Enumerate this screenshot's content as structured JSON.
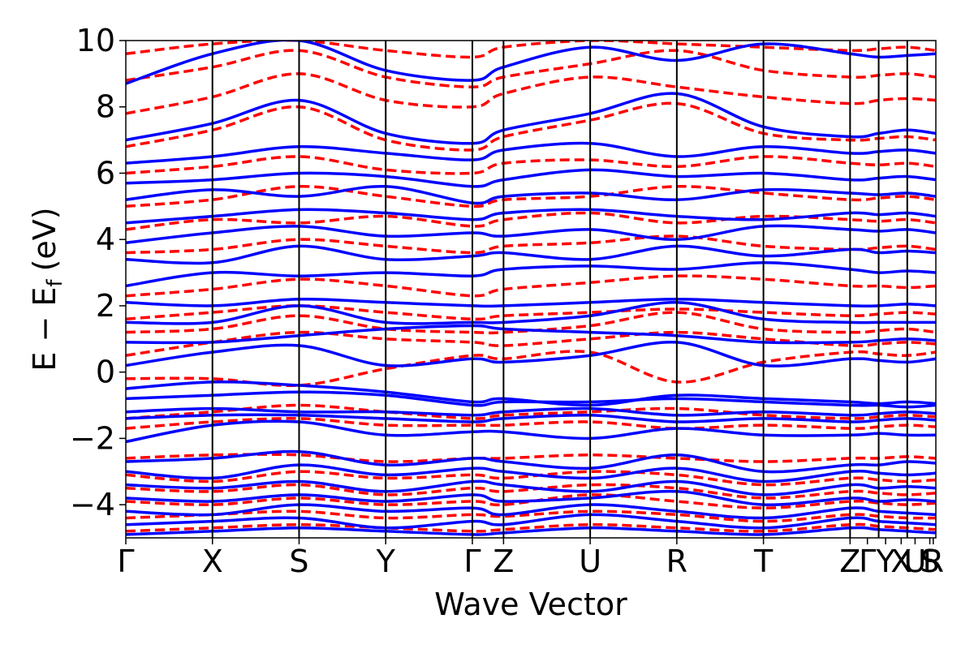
{
  "chart_data": {
    "type": "line",
    "title": "",
    "xlabel": "Wave Vector",
    "ylabel": "E − E_f (eV)",
    "ylabel_parts": {
      "base": "E  −  E",
      "sub": "f",
      "unit": "(eV)"
    },
    "ylim": [
      -5,
      10
    ],
    "yticks": [
      -4,
      -2,
      0,
      2,
      4,
      6,
      8,
      10
    ],
    "ytick_labels": [
      "−4",
      "−2",
      "0",
      "2",
      "4",
      "6",
      "8",
      "10"
    ],
    "grid": false,
    "legend": "none",
    "x_segments": [
      0,
      1,
      2,
      3,
      4,
      4.36,
      5.36,
      6.36,
      7.36,
      8.36,
      8.69,
      9.02,
      9.35
    ],
    "high_symmetry_labels": [
      "Γ",
      "X",
      "S",
      "Y",
      "Γ",
      "Z",
      "U",
      "R",
      "T",
      "Z",
      "Γ",
      "Y",
      "X",
      "U",
      "S",
      "R"
    ],
    "label_positions": [
      0,
      1,
      2,
      3,
      4,
      4.36,
      5.36,
      6.36,
      7.36,
      8.36,
      8.56,
      8.77,
      8.95,
      9.11,
      9.28,
      9.32
    ],
    "series": [
      {
        "color": "#0000ff",
        "style": "solid",
        "bands": [
          [
            -4.9,
            -4.8,
            -4.7,
            -4.8,
            -4.9,
            -4.85,
            -4.7,
            -4.8,
            -4.9,
            -4.7,
            -4.75,
            -4.8,
            -4.85
          ],
          [
            -4.6,
            -4.5,
            -4.4,
            -4.7,
            -4.5,
            -4.6,
            -4.3,
            -4.5,
            -4.7,
            -4.4,
            -4.5,
            -4.55,
            -4.6
          ],
          [
            -4.2,
            -4.3,
            -4.0,
            -4.2,
            -4.1,
            -4.3,
            -4.0,
            -4.2,
            -4.4,
            -4.1,
            -4.2,
            -4.25,
            -4.3
          ],
          [
            -3.8,
            -3.9,
            -3.7,
            -3.9,
            -3.7,
            -3.9,
            -3.8,
            -3.6,
            -4.0,
            -3.8,
            -3.9,
            -3.85,
            -3.9
          ],
          [
            -3.4,
            -3.5,
            -3.3,
            -3.6,
            -3.3,
            -3.4,
            -3.6,
            -3.3,
            -3.7,
            -3.4,
            -3.5,
            -3.45,
            -3.5
          ],
          [
            -3.0,
            -3.2,
            -2.8,
            -3.1,
            -2.9,
            -3.0,
            -3.2,
            -2.9,
            -3.3,
            -3.0,
            -3.05,
            -3.1,
            -3.05
          ],
          [
            -2.7,
            -2.6,
            -2.4,
            -2.8,
            -2.6,
            -2.7,
            -2.9,
            -2.5,
            -3.0,
            -2.8,
            -2.8,
            -2.7,
            -2.75
          ],
          [
            -2.1,
            -1.6,
            -1.5,
            -1.9,
            -1.8,
            -1.8,
            -2.0,
            -1.7,
            -1.9,
            -1.9,
            -1.85,
            -1.9,
            -1.9
          ],
          [
            -1.4,
            -1.3,
            -1.3,
            -1.4,
            -1.5,
            -1.4,
            -1.3,
            -1.5,
            -1.4,
            -1.5,
            -1.45,
            -1.4,
            -1.45
          ],
          [
            -1.2,
            -1.1,
            -1.2,
            -1.2,
            -1.3,
            -1.2,
            -1.1,
            -1.3,
            -1.2,
            -1.3,
            -1.25,
            -1.2,
            -1.25
          ],
          [
            -0.8,
            -0.7,
            -0.6,
            -0.7,
            -1.0,
            -0.9,
            -0.9,
            -0.8,
            -0.9,
            -1.0,
            -1.0,
            -1.05,
            -1.0
          ],
          [
            -0.5,
            -0.3,
            -0.4,
            -0.6,
            -0.9,
            -0.8,
            -1.0,
            -0.7,
            -0.8,
            -0.9,
            -0.95,
            -0.9,
            -0.95
          ],
          [
            0.2,
            0.6,
            0.8,
            0.2,
            0.4,
            0.3,
            0.5,
            0.9,
            0.2,
            0.4,
            0.35,
            0.3,
            0.4
          ],
          [
            0.9,
            0.9,
            1.1,
            1.3,
            1.4,
            1.3,
            1.2,
            1.1,
            0.9,
            0.9,
            0.95,
            1.0,
            0.95
          ],
          [
            1.5,
            1.5,
            2.0,
            1.5,
            1.5,
            1.5,
            1.7,
            2.1,
            1.6,
            1.5,
            1.5,
            1.5,
            1.5
          ],
          [
            2.1,
            2.0,
            2.2,
            2.1,
            2.0,
            2.0,
            2.1,
            2.2,
            2.1,
            2.0,
            2.0,
            2.05,
            2.0
          ],
          [
            2.6,
            3.0,
            2.9,
            3.0,
            2.9,
            3.1,
            3.2,
            3.1,
            3.3,
            3.1,
            3.0,
            3.05,
            3.0
          ],
          [
            3.4,
            3.3,
            3.8,
            3.4,
            3.5,
            3.6,
            3.4,
            3.8,
            3.5,
            3.7,
            3.6,
            3.65,
            3.6
          ],
          [
            3.9,
            4.2,
            4.4,
            4.1,
            4.2,
            4.1,
            4.3,
            4.0,
            4.4,
            4.3,
            4.25,
            4.3,
            4.2
          ],
          [
            4.5,
            4.7,
            4.9,
            4.8,
            4.6,
            4.8,
            4.9,
            4.7,
            4.6,
            4.8,
            4.75,
            4.8,
            4.7
          ],
          [
            5.2,
            5.5,
            5.3,
            5.6,
            5.1,
            5.3,
            5.4,
            5.2,
            5.5,
            5.4,
            5.35,
            5.4,
            5.3
          ],
          [
            5.7,
            5.8,
            6.0,
            5.9,
            5.6,
            5.8,
            6.1,
            5.9,
            6.0,
            5.8,
            5.85,
            5.9,
            5.8
          ],
          [
            6.3,
            6.5,
            6.8,
            6.6,
            6.4,
            6.7,
            6.9,
            6.5,
            6.8,
            6.6,
            6.65,
            6.7,
            6.6
          ],
          [
            7.0,
            7.5,
            8.2,
            7.2,
            6.9,
            7.3,
            7.8,
            8.4,
            7.4,
            7.1,
            7.2,
            7.3,
            7.2
          ],
          [
            8.7,
            9.6,
            10.0,
            9.1,
            8.8,
            9.2,
            9.8,
            9.4,
            9.9,
            9.6,
            9.5,
            9.55,
            9.6
          ]
        ]
      },
      {
        "color": "#ff0000",
        "style": "dashed",
        "bands": [
          [
            -4.8,
            -4.7,
            -4.6,
            -4.7,
            -4.8,
            -4.75,
            -4.6,
            -4.7,
            -4.8,
            -4.6,
            -4.65,
            -4.7,
            -4.75
          ],
          [
            -4.4,
            -4.3,
            -4.2,
            -4.4,
            -4.3,
            -4.35,
            -4.2,
            -4.3,
            -4.5,
            -4.3,
            -4.35,
            -4.4,
            -4.4
          ],
          [
            -3.9,
            -4.0,
            -3.8,
            -4.0,
            -3.9,
            -4.0,
            -3.7,
            -3.9,
            -4.1,
            -3.9,
            -3.95,
            -4.0,
            -3.95
          ],
          [
            -3.5,
            -3.6,
            -3.4,
            -3.7,
            -3.5,
            -3.6,
            -3.4,
            -3.5,
            -3.8,
            -3.6,
            -3.65,
            -3.7,
            -3.65
          ],
          [
            -3.1,
            -3.3,
            -3.0,
            -3.2,
            -3.1,
            -3.2,
            -3.0,
            -3.1,
            -3.4,
            -3.2,
            -3.25,
            -3.3,
            -3.25
          ],
          [
            -2.6,
            -2.5,
            -2.5,
            -2.7,
            -2.6,
            -2.6,
            -2.5,
            -2.6,
            -2.7,
            -2.6,
            -2.6,
            -2.55,
            -2.6
          ],
          [
            -1.7,
            -1.5,
            -1.4,
            -1.6,
            -1.6,
            -1.6,
            -1.5,
            -1.7,
            -1.6,
            -1.7,
            -1.65,
            -1.6,
            -1.65
          ],
          [
            -1.4,
            -1.2,
            -1.0,
            -1.2,
            -1.4,
            -1.3,
            -1.2,
            -1.1,
            -1.3,
            -1.4,
            -1.35,
            -1.3,
            -1.35
          ],
          [
            -0.2,
            -0.2,
            -0.4,
            0.1,
            0.5,
            0.4,
            0.6,
            -0.3,
            0.3,
            0.6,
            0.55,
            0.5,
            0.6
          ],
          [
            0.5,
            0.9,
            1.2,
            1.0,
            0.9,
            0.8,
            1.0,
            1.2,
            1.0,
            0.8,
            0.85,
            0.9,
            0.85
          ],
          [
            1.2,
            1.3,
            1.7,
            1.3,
            1.2,
            1.2,
            1.4,
            1.8,
            1.3,
            1.2,
            1.25,
            1.3,
            1.2
          ],
          [
            1.6,
            1.8,
            2.0,
            1.8,
            1.6,
            1.7,
            1.8,
            1.9,
            1.8,
            1.7,
            1.75,
            1.8,
            1.75
          ],
          [
            2.3,
            2.5,
            2.8,
            2.6,
            2.3,
            2.5,
            2.7,
            2.9,
            2.8,
            2.6,
            2.6,
            2.55,
            2.6
          ],
          [
            3.6,
            3.7,
            4.0,
            3.8,
            3.6,
            3.8,
            3.9,
            4.1,
            3.8,
            3.7,
            3.75,
            3.8,
            3.7
          ],
          [
            4.3,
            4.6,
            4.5,
            4.7,
            4.4,
            4.6,
            4.8,
            4.5,
            4.7,
            4.6,
            4.55,
            4.6,
            4.5
          ],
          [
            5.0,
            5.2,
            5.6,
            5.3,
            5.0,
            5.2,
            5.3,
            5.6,
            5.4,
            5.2,
            5.25,
            5.3,
            5.2
          ],
          [
            6.0,
            6.2,
            6.5,
            6.1,
            6.0,
            6.3,
            6.4,
            6.2,
            6.5,
            6.3,
            6.25,
            6.3,
            6.2
          ],
          [
            6.8,
            7.3,
            8.0,
            7.0,
            6.7,
            7.1,
            7.6,
            8.1,
            7.2,
            7.0,
            7.05,
            7.1,
            7.0
          ],
          [
            7.8,
            8.3,
            9.0,
            8.2,
            8.0,
            8.4,
            8.9,
            8.6,
            8.3,
            8.1,
            8.2,
            8.25,
            8.2
          ],
          [
            8.8,
            9.2,
            9.7,
            8.9,
            8.6,
            8.9,
            9.3,
            9.7,
            9.1,
            8.9,
            8.95,
            9.0,
            8.9
          ],
          [
            9.6,
            9.9,
            10.0,
            9.7,
            9.5,
            9.8,
            10.0,
            9.9,
            9.8,
            9.7,
            9.75,
            9.8,
            9.7
          ]
        ]
      }
    ]
  }
}
